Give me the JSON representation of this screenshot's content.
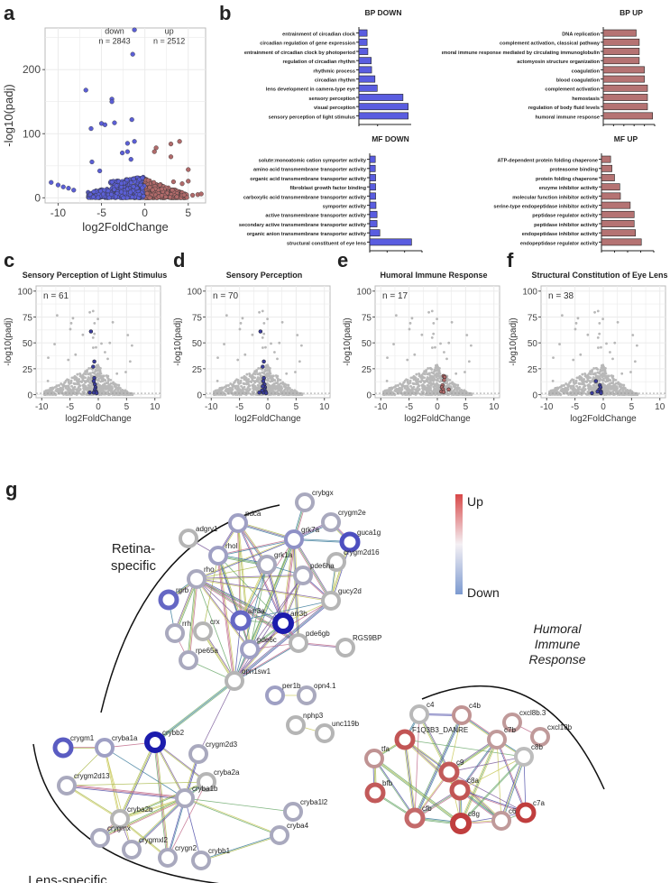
{
  "panel_labels": {
    "a": "a",
    "b": "b",
    "c": "c",
    "d": "d",
    "e": "e",
    "f": "f",
    "g": "g"
  },
  "colors": {
    "down": "#5b5fd6",
    "up": "#b06a6a",
    "grey": "#b8b8b8",
    "grid": "#ebebeb",
    "bar_down": "#5a5de0",
    "bar_up": "#b57373",
    "net_down": "#2020a8",
    "net_up": "#c23b3b"
  },
  "chart_data": [
    {
      "id": "a",
      "type": "scatter",
      "title": "",
      "xlabel": "log2FoldChange",
      "ylabel": "-log10(padj)",
      "xlim": [
        -11.5,
        7
      ],
      "ylim": [
        -8,
        265
      ],
      "xticks": [
        "-10",
        "-5",
        "0",
        "5"
      ],
      "xtick_values": [
        -10,
        -5,
        0,
        5
      ],
      "yticks": [
        "0",
        "100",
        "200"
      ],
      "ytick_values": [
        0,
        100,
        200
      ],
      "annotations": [
        {
          "text1": "down",
          "text2": "n = 2843",
          "x": -3.5,
          "y": 250
        },
        {
          "text1": "up",
          "text2": "n = 2512",
          "x": 2.8,
          "y": 250
        }
      ],
      "highlight_points_down": [
        [
          -1.2,
          262
        ],
        [
          -1.4,
          224
        ],
        [
          -6.8,
          168
        ],
        [
          -3.8,
          154
        ],
        [
          -3.8,
          150
        ],
        [
          -6.2,
          108
        ],
        [
          -5.0,
          116
        ],
        [
          -4.6,
          114
        ],
        [
          -3.5,
          117
        ],
        [
          -1.5,
          122
        ],
        [
          -2.0,
          85
        ],
        [
          -1.2,
          88
        ],
        [
          -6.1,
          56
        ],
        [
          -5.2,
          42
        ],
        [
          -2.6,
          70
        ],
        [
          -2.0,
          72
        ],
        [
          -1.6,
          60
        ],
        [
          -10.8,
          24
        ],
        [
          -10.0,
          20
        ],
        [
          -9.4,
          17
        ],
        [
          -8.8,
          15
        ],
        [
          -8.2,
          12
        ]
      ],
      "highlight_points_up": [
        [
          1.3,
          78
        ],
        [
          1.1,
          72
        ],
        [
          3.0,
          84
        ],
        [
          4.0,
          88
        ],
        [
          3.0,
          64
        ],
        [
          5.0,
          44
        ],
        [
          5.0,
          26
        ],
        [
          3.3,
          25
        ],
        [
          4.3,
          22
        ],
        [
          5.5,
          4
        ],
        [
          6.1,
          5
        ],
        [
          6.5,
          6
        ]
      ]
    },
    {
      "id": "b1",
      "type": "bar",
      "title": "BP DOWN",
      "categories": [
        "entrainment of circadian clock",
        "circadian regulation of gene expression",
        "entrainment of circadian clock by photoperiod",
        "regulation of circadian rhythm",
        "rhythmic process",
        "circadian rhythm",
        "lens development in camera-type eye",
        "sensory perception",
        "visual perception",
        "sensory perception of light stimulus"
      ],
      "values": [
        2.2,
        2.2,
        2.4,
        3.3,
        3.4,
        4.3,
        4.9,
        11.8,
        13.2,
        13.2
      ],
      "xlim": [
        0,
        14
      ],
      "xticks": [
        "0",
        "5"
      ],
      "xtick_values": [
        0,
        5
      ],
      "xlabel": "-log",
      "xlabel_sub": "10",
      "xlabel_tail": "(p"
    },
    {
      "id": "b2",
      "type": "bar",
      "title": "BP UP",
      "categories": [
        "DNA replication",
        "complement activation, classical pathway",
        "humoral immune response mediated by circulating immunoglobulin",
        "actomyosin structure organization",
        "coagulation",
        "blood coagulation",
        "complement activation",
        "hemostasis",
        "regulation of body fluid levels",
        "humoral immune response"
      ],
      "values": [
        3.2,
        3.5,
        3.5,
        3.5,
        4.0,
        4.0,
        4.3,
        4.3,
        4.3,
        4.8
      ],
      "xlim": [
        0,
        5
      ],
      "xticks": [
        "0",
        "1",
        "2",
        "3",
        "4",
        "5"
      ],
      "xtick_values": [
        0,
        1,
        2,
        3,
        4,
        5
      ],
      "xlabel": "-log",
      "xlabel_sub": "10",
      "xlabel_tail": "(padj)"
    },
    {
      "id": "b3",
      "type": "bar",
      "title": "MF DOWN",
      "categories": [
        "solute:monoatomic cation symporter activity",
        "amino acid transmembrane transporter activity",
        "organic acid transmembrane transporter activity",
        "fibroblast growth factor binding",
        "carboxylic acid transmembrane transporter activity",
        "symporter activity",
        "active transmembrane transporter activity",
        "secondary active transmembrane transporter activity",
        "organic anion transmembrane transporter activity",
        "structural constituent of eye lens"
      ],
      "values": [
        1.6,
        1.6,
        1.7,
        1.7,
        1.7,
        1.8,
        2.1,
        2.1,
        2.9,
        12.0
      ],
      "xlim": [
        0,
        15
      ],
      "xticks": [
        "0",
        "5",
        "10",
        "15"
      ],
      "xtick_values": [
        0,
        5,
        10,
        15
      ],
      "xlabel": "-log",
      "xlabel_sub": "10",
      "xlabel_tail": "(padj)"
    },
    {
      "id": "b4",
      "type": "bar",
      "title": "MF UP",
      "categories": [
        "ATP-dependent protein folding chaperone",
        "proteasome binding",
        "protein folding chaperone",
        "enzyme inhibitor activity",
        "molecular function inhibitor activity",
        "serine-type endopeptidase inhibitor activity",
        "peptidase regulator activity",
        "peptidase inhibitor activity",
        "endopeptidase inhibitor activity",
        "endopeptidase regulator activity"
      ],
      "values": [
        1.4,
        1.6,
        2.0,
        2.8,
        2.9,
        4.4,
        5.0,
        5.0,
        5.2,
        6.1
      ],
      "xlim": [
        0,
        8
      ],
      "xticks": [
        "0",
        "2",
        "4",
        "6",
        "8"
      ],
      "xtick_values": [
        0,
        2,
        4,
        6,
        8
      ],
      "xlabel": "-log",
      "xlabel_sub": "10",
      "xlabel_tail": "(padj)"
    },
    {
      "id": "c",
      "type": "scatter",
      "title": "Sensory Perception of Light Stimulus",
      "annotation": "n = 61",
      "highlight": "down",
      "xlabel": "log2FoldChange",
      "ylabel": "-log10(padj)",
      "xlim": [
        -11,
        11
      ],
      "ylim": [
        -3,
        105
      ],
      "xticks": [
        "-10",
        "-5",
        "0",
        "5",
        "10"
      ],
      "xtick_values": [
        -10,
        -5,
        0,
        5,
        10
      ],
      "yticks": [
        "0",
        "25",
        "50",
        "75",
        "100"
      ],
      "ytick_values": [
        0,
        25,
        50,
        75,
        100
      ],
      "highlight_points": [
        [
          -1.3,
          61
        ],
        [
          -0.7,
          32
        ],
        [
          -0.9,
          27
        ],
        [
          -0.7,
          16
        ],
        [
          -0.8,
          13
        ],
        [
          -0.6,
          10
        ],
        [
          -0.5,
          7
        ],
        [
          -0.6,
          5
        ],
        [
          -0.4,
          3
        ],
        [
          -1.5,
          2
        ],
        [
          -0.8,
          2
        ],
        [
          -0.3,
          1.5
        ]
      ]
    },
    {
      "id": "d",
      "type": "scatter",
      "title": "Sensory Perception",
      "annotation": "n = 70",
      "highlight": "down",
      "xlabel": "log2FoldChange",
      "ylabel": "-log10(padj)",
      "xlim": [
        -11,
        11
      ],
      "ylim": [
        -3,
        105
      ],
      "xticks": [
        "-10",
        "-5",
        "0",
        "5",
        "10"
      ],
      "xtick_values": [
        -10,
        -5,
        0,
        5,
        10
      ],
      "yticks": [
        "0",
        "25",
        "50",
        "75",
        "100"
      ],
      "ytick_values": [
        0,
        25,
        50,
        75,
        100
      ],
      "highlight_points": [
        [
          -1.3,
          61
        ],
        [
          -0.7,
          32
        ],
        [
          -0.9,
          27
        ],
        [
          -0.7,
          16
        ],
        [
          -0.8,
          13
        ],
        [
          -0.6,
          10
        ],
        [
          -0.5,
          7
        ],
        [
          -0.6,
          5
        ],
        [
          -0.4,
          3
        ],
        [
          -1.5,
          2
        ],
        [
          -0.8,
          2
        ],
        [
          -0.3,
          1.5
        ],
        [
          -1.0,
          4
        ],
        [
          -0.9,
          8
        ]
      ]
    },
    {
      "id": "e",
      "type": "scatter",
      "title": "Humoral Immune Response",
      "annotation": "n = 17",
      "highlight": "up",
      "xlabel": "log2FoldChange",
      "ylabel": "-log10(padj)",
      "xlim": [
        -11,
        11
      ],
      "ylim": [
        -3,
        105
      ],
      "xticks": [
        "-10",
        "-5",
        "0",
        "5",
        "10"
      ],
      "xtick_values": [
        -10,
        -5,
        0,
        5,
        10
      ],
      "yticks": [
        "0",
        "25",
        "50",
        "75",
        "100"
      ],
      "ytick_values": [
        0,
        25,
        50,
        75,
        100
      ],
      "highlight_points": [
        [
          1.1,
          18
        ],
        [
          1.3,
          17
        ],
        [
          1.2,
          14
        ],
        [
          0.9,
          9
        ],
        [
          0.8,
          7
        ],
        [
          1.0,
          5
        ],
        [
          0.7,
          3
        ],
        [
          1.1,
          2.5
        ],
        [
          2.0,
          5
        ]
      ]
    },
    {
      "id": "f",
      "type": "scatter",
      "title": "Structural Constitution of Eye Lens",
      "annotation": "n = 38",
      "highlight": "down",
      "xlabel": "log2FoldChange",
      "ylabel": "-log10(padj)",
      "xlim": [
        -11,
        11
      ],
      "ylim": [
        -3,
        105
      ],
      "xticks": [
        "-10",
        "-5",
        "0",
        "5",
        "10"
      ],
      "xtick_values": [
        -10,
        -5,
        0,
        5,
        10
      ],
      "yticks": [
        "0",
        "25",
        "50",
        "75",
        "100"
      ],
      "ytick_values": [
        0,
        25,
        50,
        75,
        100
      ],
      "highlight_points": [
        [
          -1.3,
          13
        ],
        [
          -0.6,
          9
        ],
        [
          -0.5,
          7
        ],
        [
          -0.7,
          5
        ],
        [
          -0.4,
          3
        ],
        [
          -1.0,
          3
        ],
        [
          -2.0,
          1.5
        ],
        [
          -0.4,
          1.5
        ]
      ]
    }
  ],
  "network": {
    "region_labels": {
      "retina": "Retina-\nspecific",
      "retina_line1": "Retina-",
      "retina_line2": "specific",
      "lens": "Lens-specific",
      "humoral_line1": "Humoral",
      "humoral_line2": "Immune",
      "humoral_line3": "Response"
    },
    "legend": {
      "up": "Up",
      "down": "Down"
    },
    "nodes": [
      {
        "id": "crybgx",
        "label": "crybgx",
        "color": "#a9a9be",
        "w": 4
      },
      {
        "id": "crygm2e",
        "label": "crygm2e",
        "color": "#a9a9be",
        "w": 4
      },
      {
        "id": "pdca",
        "label": "pdca",
        "color": "#9fa0c4",
        "w": 4
      },
      {
        "id": "guca1g",
        "label": "guca1g",
        "color": "#4d4fc0",
        "w": 5
      },
      {
        "id": "adgrv1",
        "label": "adgrv1",
        "color": "#b5b5b5",
        "w": 4
      },
      {
        "id": "grk7a",
        "label": "grk7a",
        "color": "#8f91c6",
        "w": 4
      },
      {
        "id": "rhol",
        "label": "rhol",
        "color": "#9fa0c4",
        "w": 4
      },
      {
        "id": "crygm2d16",
        "label": "crygm2d16",
        "color": "#b5b5b5",
        "w": 4
      },
      {
        "id": "grk1a",
        "label": "grk1a",
        "color": "#a9a9be",
        "w": 4
      },
      {
        "id": "rho",
        "label": "rho",
        "color": "#a9a9be",
        "w": 4
      },
      {
        "id": "pde6ha",
        "label": "pde6ha",
        "color": "#a9a9be",
        "w": 4
      },
      {
        "id": "rgrb",
        "label": "rgrb",
        "color": "#6567c4",
        "w": 5
      },
      {
        "id": "gucy2d",
        "label": "gucy2d",
        "color": "#b5b5b5",
        "w": 4
      },
      {
        "id": "arr3a",
        "label": "arr3a",
        "color": "#6567c4",
        "w": 5
      },
      {
        "id": "arr3b",
        "label": "arr3b",
        "color": "#1c1cad",
        "w": 6
      },
      {
        "id": "rrh",
        "label": "rrh",
        "color": "#a9a9be",
        "w": 4
      },
      {
        "id": "crx",
        "label": "crx",
        "color": "#b5b5b5",
        "w": 4
      },
      {
        "id": "pde6c",
        "label": "pde6c",
        "color": "#9fa0c4",
        "w": 4
      },
      {
        "id": "pde6gb",
        "label": "pde6gb",
        "color": "#b5b5b5",
        "w": 4
      },
      {
        "id": "RGS9BP",
        "label": "RGS9BP",
        "color": "#b5b5b5",
        "w": 4
      },
      {
        "id": "rpe65a",
        "label": "rpe65a",
        "color": "#a9a9be",
        "w": 4
      },
      {
        "id": "opn1sw1",
        "label": "opn1sw1",
        "color": "#b5b5b5",
        "w": 4
      },
      {
        "id": "per1b",
        "label": "per1b",
        "color": "#9fa0c4",
        "w": 4
      },
      {
        "id": "opn4.1",
        "label": "opn4.1",
        "color": "#a9a9be",
        "w": 4
      },
      {
        "id": "nphp3",
        "label": "nphp3",
        "color": "#b5b5b5",
        "w": 4
      },
      {
        "id": "unc119b",
        "label": "unc119b",
        "color": "#b5b5b5",
        "w": 4
      },
      {
        "id": "crygm1",
        "label": "crygm1",
        "color": "#5a5cc2",
        "w": 5
      },
      {
        "id": "cryba1a",
        "label": "cryba1a",
        "color": "#9fa0c4",
        "w": 4
      },
      {
        "id": "crybb2",
        "label": "crybb2",
        "color": "#1c1cad",
        "w": 6
      },
      {
        "id": "crygm2d3",
        "label": "crygm2d3",
        "color": "#a9a9be",
        "w": 4
      },
      {
        "id": "crygm2d13",
        "label": "crygm2d13",
        "color": "#a9a9be",
        "w": 4
      },
      {
        "id": "cryba2a",
        "label": "cryba2a",
        "color": "#b5b5b5",
        "w": 4
      },
      {
        "id": "cryba1b",
        "label": "cryba1b",
        "color": "#a9a9be",
        "w": 4
      },
      {
        "id": "cryba2b",
        "label": "cryba2b",
        "color": "#b5b5b5",
        "w": 4
      },
      {
        "id": "cryba1l2",
        "label": "cryba1l2",
        "color": "#a9a9be",
        "w": 4
      },
      {
        "id": "crygmx",
        "label": "crygmx",
        "color": "#a9a9be",
        "w": 4
      },
      {
        "id": "cryba4",
        "label": "cryba4",
        "color": "#a9a9be",
        "w": 4
      },
      {
        "id": "crygmxl2",
        "label": "crygmxl2",
        "color": "#a9a9be",
        "w": 4
      },
      {
        "id": "crygn2",
        "label": "crygn2",
        "color": "#a9a9be",
        "w": 4
      },
      {
        "id": "crybb1",
        "label": "crybb1",
        "color": "#a9a9be",
        "w": 4
      },
      {
        "id": "c4",
        "label": "c4",
        "color": "#b9b9b9",
        "w": 4
      },
      {
        "id": "c4b",
        "label": "c4b",
        "color": "#c09393",
        "w": 4
      },
      {
        "id": "cxcl8b.3",
        "label": "cxcl8b.3",
        "color": "#c09a9a",
        "w": 4
      },
      {
        "id": "cxcl18b",
        "label": "cxcl18b",
        "color": "#c09a9a",
        "w": 4
      },
      {
        "id": "F1Q3B3_DANRE",
        "label": "F1Q3B3_DANRE",
        "color": "#c25555",
        "w": 5
      },
      {
        "id": "c7b",
        "label": "c7b",
        "color": "#c09a9a",
        "w": 4
      },
      {
        "id": "tfa",
        "label": "tfa",
        "color": "#c09393",
        "w": 4
      },
      {
        "id": "c8b",
        "label": "c8b",
        "color": "#bdbdbd",
        "w": 4
      },
      {
        "id": "c9",
        "label": "c9",
        "color": "#c25a5a",
        "w": 5
      },
      {
        "id": "bfb",
        "label": "bfb",
        "color": "#c25a5a",
        "w": 5
      },
      {
        "id": "c8a",
        "label": "c8a",
        "color": "#c25555",
        "w": 5
      },
      {
        "id": "c7a",
        "label": "c7a",
        "color": "#c03e3e",
        "w": 5
      },
      {
        "id": "cfb",
        "label": "cfb",
        "color": "#c46a6a",
        "w": 5
      },
      {
        "id": "c8g",
        "label": "c8g",
        "color": "#c03e3e",
        "w": 6
      },
      {
        "id": "c6",
        "label": "c6",
        "color": "#c09a9a",
        "w": 4
      }
    ]
  }
}
